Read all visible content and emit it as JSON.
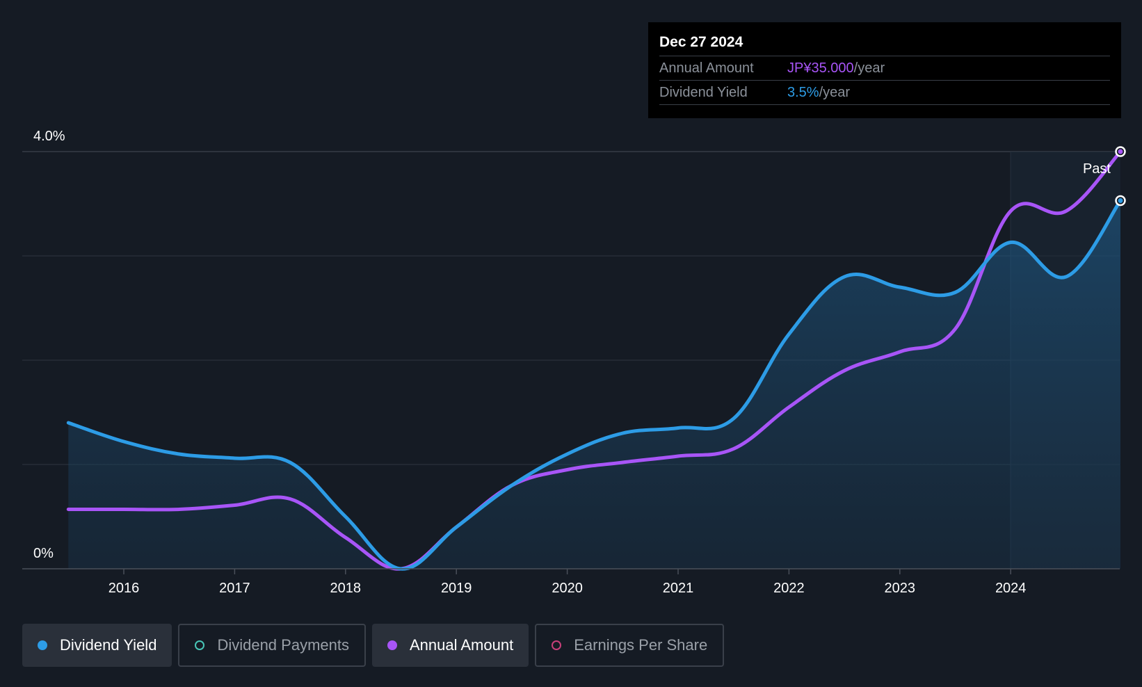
{
  "tooltip": {
    "date": "Dec 27 2024",
    "rows": [
      {
        "label": "Annual Amount",
        "value": "JP¥35.000",
        "suffix": "/year"
      },
      {
        "label": "Dividend Yield",
        "value": "3.5%",
        "suffix": "/year"
      }
    ]
  },
  "past_label": "Past",
  "legend": [
    {
      "label": "Dividend Yield",
      "color": "#2d9ce6",
      "active": true,
      "icon": "dividend-yield-dot-icon"
    },
    {
      "label": "Dividend Payments",
      "color": "#48c6b8",
      "active": false,
      "icon": "dividend-payments-dot-icon"
    },
    {
      "label": "Annual Amount",
      "color": "#a855f7",
      "active": true,
      "icon": "annual-amount-dot-icon"
    },
    {
      "label": "Earnings Per Share",
      "color": "#c8407a",
      "active": false,
      "icon": "earnings-per-share-dot-icon"
    }
  ],
  "colors": {
    "background": "#151b24",
    "dividend_yield": "#2d9ce6",
    "annual_amount": "#a855f7",
    "grid": "#2f3540"
  },
  "chart_data": {
    "type": "line",
    "ylim": [
      0,
      4.0
    ],
    "y_tick_labels": [
      "0%",
      "4.0%"
    ],
    "x_tick_labels": [
      "2016",
      "2017",
      "2018",
      "2019",
      "2020",
      "2021",
      "2022",
      "2023",
      "2024"
    ],
    "xlim": [
      2015.35,
      2024.99
    ],
    "past_region_start": 2024.0,
    "grid": true,
    "series": [
      {
        "name": "Dividend Yield",
        "color": "#2d9ce6",
        "filled": true,
        "points": [
          [
            2015.5,
            1.4
          ],
          [
            2016.0,
            1.22
          ],
          [
            2016.5,
            1.1
          ],
          [
            2017.0,
            1.06
          ],
          [
            2017.5,
            1.02
          ],
          [
            2018.0,
            0.5
          ],
          [
            2018.5,
            0.0
          ],
          [
            2019.0,
            0.4
          ],
          [
            2019.5,
            0.8
          ],
          [
            2020.0,
            1.1
          ],
          [
            2020.5,
            1.3
          ],
          [
            2021.0,
            1.35
          ],
          [
            2021.5,
            1.44
          ],
          [
            2022.0,
            2.25
          ],
          [
            2022.5,
            2.8
          ],
          [
            2023.0,
            2.7
          ],
          [
            2023.5,
            2.65
          ],
          [
            2024.0,
            3.13
          ],
          [
            2024.5,
            2.8
          ],
          [
            2024.99,
            3.53
          ]
        ]
      },
      {
        "name": "Annual Amount",
        "color": "#a855f7",
        "filled": false,
        "points": [
          [
            2015.5,
            0.57
          ],
          [
            2016.0,
            0.57
          ],
          [
            2016.5,
            0.57
          ],
          [
            2017.0,
            0.61
          ],
          [
            2017.5,
            0.67
          ],
          [
            2018.0,
            0.3
          ],
          [
            2018.5,
            0.0
          ],
          [
            2019.0,
            0.4
          ],
          [
            2019.5,
            0.8
          ],
          [
            2020.0,
            0.95
          ],
          [
            2020.5,
            1.02
          ],
          [
            2021.0,
            1.08
          ],
          [
            2021.5,
            1.15
          ],
          [
            2022.0,
            1.55
          ],
          [
            2022.5,
            1.9
          ],
          [
            2023.0,
            2.08
          ],
          [
            2023.5,
            2.3
          ],
          [
            2024.0,
            3.43
          ],
          [
            2024.5,
            3.43
          ],
          [
            2024.99,
            4.0
          ]
        ]
      }
    ]
  }
}
